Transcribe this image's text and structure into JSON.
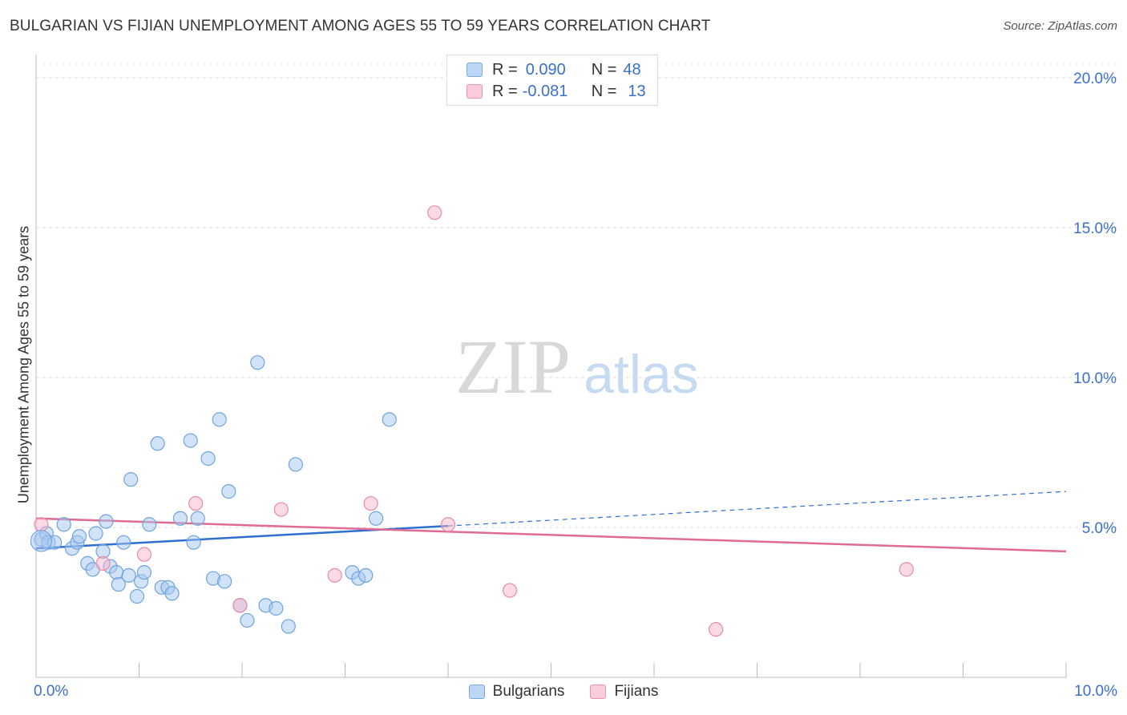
{
  "title": "BULGARIAN VS FIJIAN UNEMPLOYMENT AMONG AGES 55 TO 59 YEARS CORRELATION CHART",
  "source": "Source: ZipAtlas.com",
  "watermark": {
    "zip": "ZIP",
    "atlas": "atlas"
  },
  "legend": {
    "rows": [
      {
        "r_label": "R =",
        "r_value": "0.090",
        "n_label": "N =",
        "n_value": "48",
        "color": "#a8c8f0"
      },
      {
        "r_label": "R =",
        "r_value": "-0.081",
        "n_label": "N =",
        "n_value": "13",
        "color": "#f5b8cc"
      }
    ]
  },
  "chart_data": {
    "type": "scatter",
    "title": "BULGARIAN VS FIJIAN UNEMPLOYMENT AMONG AGES 55 TO 59 YEARS CORRELATION CHART",
    "xlabel": "",
    "ylabel": "Unemployment Among Ages 55 to 59 years",
    "xlim": [
      0,
      10
    ],
    "ylim": [
      0,
      20
    ],
    "x_tick_labels": [
      "0.0%",
      "10.0%"
    ],
    "y_ticks": [
      5,
      10,
      15,
      20
    ],
    "y_tick_labels": [
      "5.0%",
      "10.0%",
      "15.0%",
      "20.0%"
    ],
    "series": [
      {
        "name": "Bulgarians",
        "color": "#6fa3e0",
        "fill": "#a8c8f0",
        "points": [
          [
            0.05,
            4.6
          ],
          [
            0.1,
            4.8
          ],
          [
            0.12,
            4.5
          ],
          [
            0.18,
            4.5
          ],
          [
            0.27,
            5.1
          ],
          [
            0.35,
            4.3
          ],
          [
            0.4,
            4.5
          ],
          [
            0.42,
            4.7
          ],
          [
            0.5,
            3.8
          ],
          [
            0.55,
            3.6
          ],
          [
            0.58,
            4.8
          ],
          [
            0.65,
            4.2
          ],
          [
            0.68,
            5.2
          ],
          [
            0.72,
            3.7
          ],
          [
            0.78,
            3.5
          ],
          [
            0.8,
            3.1
          ],
          [
            0.85,
            4.5
          ],
          [
            0.9,
            3.4
          ],
          [
            0.92,
            6.6
          ],
          [
            0.98,
            2.7
          ],
          [
            1.02,
            3.2
          ],
          [
            1.05,
            3.5
          ],
          [
            1.1,
            5.1
          ],
          [
            1.18,
            7.8
          ],
          [
            1.22,
            3.0
          ],
          [
            1.28,
            3.0
          ],
          [
            1.32,
            2.8
          ],
          [
            1.4,
            5.3
          ],
          [
            1.5,
            7.9
          ],
          [
            1.53,
            4.5
          ],
          [
            1.57,
            5.3
          ],
          [
            1.67,
            7.3
          ],
          [
            1.72,
            3.3
          ],
          [
            1.78,
            8.6
          ],
          [
            1.83,
            3.2
          ],
          [
            1.87,
            6.2
          ],
          [
            1.98,
            2.4
          ],
          [
            2.05,
            1.9
          ],
          [
            2.15,
            10.5
          ],
          [
            2.23,
            2.4
          ],
          [
            2.33,
            2.3
          ],
          [
            2.45,
            1.7
          ],
          [
            2.52,
            7.1
          ],
          [
            3.07,
            3.5
          ],
          [
            3.13,
            3.3
          ],
          [
            3.2,
            3.4
          ],
          [
            3.3,
            5.3
          ],
          [
            3.43,
            8.6
          ]
        ]
      },
      {
        "name": "Fijians",
        "color": "#e88aa8",
        "fill": "#f5b8cc",
        "points": [
          [
            0.05,
            5.1
          ],
          [
            0.65,
            3.8
          ],
          [
            1.05,
            4.1
          ],
          [
            1.55,
            5.8
          ],
          [
            1.98,
            2.4
          ],
          [
            2.38,
            5.6
          ],
          [
            2.9,
            3.4
          ],
          [
            3.25,
            5.8
          ],
          [
            3.87,
            15.5
          ],
          [
            4.0,
            5.1
          ],
          [
            4.6,
            2.9
          ],
          [
            6.6,
            1.6
          ],
          [
            8.45,
            3.6
          ]
        ]
      }
    ],
    "trendlines": [
      {
        "series": "Bulgarians",
        "color": "#2e6fd0",
        "x": [
          0.0,
          4.0
        ],
        "y": [
          4.3,
          5.05
        ],
        "dashed_extension": {
          "x": [
            4.0,
            10.0
          ],
          "y": [
            5.05,
            6.2
          ]
        }
      },
      {
        "series": "Fijians",
        "color": "#e06b93",
        "x": [
          0.0,
          10.0
        ],
        "y": [
          5.3,
          4.2
        ]
      }
    ]
  }
}
